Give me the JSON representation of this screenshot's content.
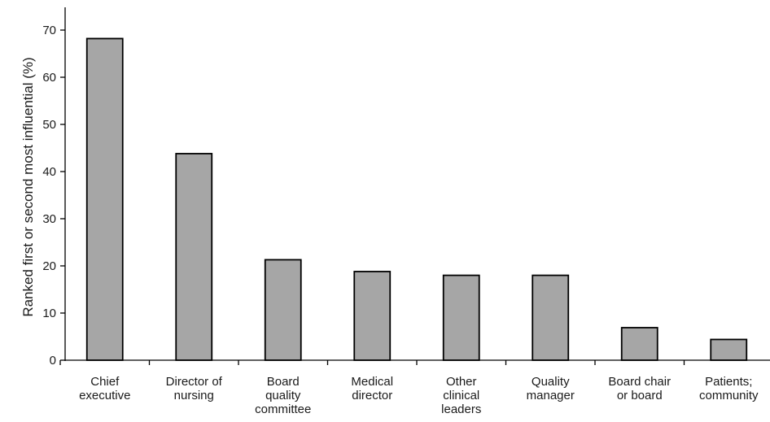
{
  "chart_data": {
    "type": "bar",
    "title": "",
    "xlabel": "",
    "ylabel": "Ranked first or second most influential (%)",
    "ylim": [
      0,
      75
    ],
    "yticks": [
      0,
      10,
      20,
      30,
      40,
      50,
      60,
      70
    ],
    "grid": false,
    "categories": [
      [
        "Chief",
        "executive"
      ],
      [
        "Director of",
        "nursing"
      ],
      [
        "Board",
        "quality",
        "committee"
      ],
      [
        "Medical",
        "director"
      ],
      [
        "Other",
        "clinical",
        "leaders"
      ],
      [
        "Quality",
        "manager"
      ],
      [
        "Board chair",
        "or board"
      ],
      [
        "Patients;",
        "community"
      ]
    ],
    "values": [
      68.2,
      43.8,
      21.3,
      18.8,
      18.0,
      18.0,
      6.9,
      4.4
    ],
    "bar_color": "#a6a6a6",
    "bar_edge_color": "#000000"
  }
}
